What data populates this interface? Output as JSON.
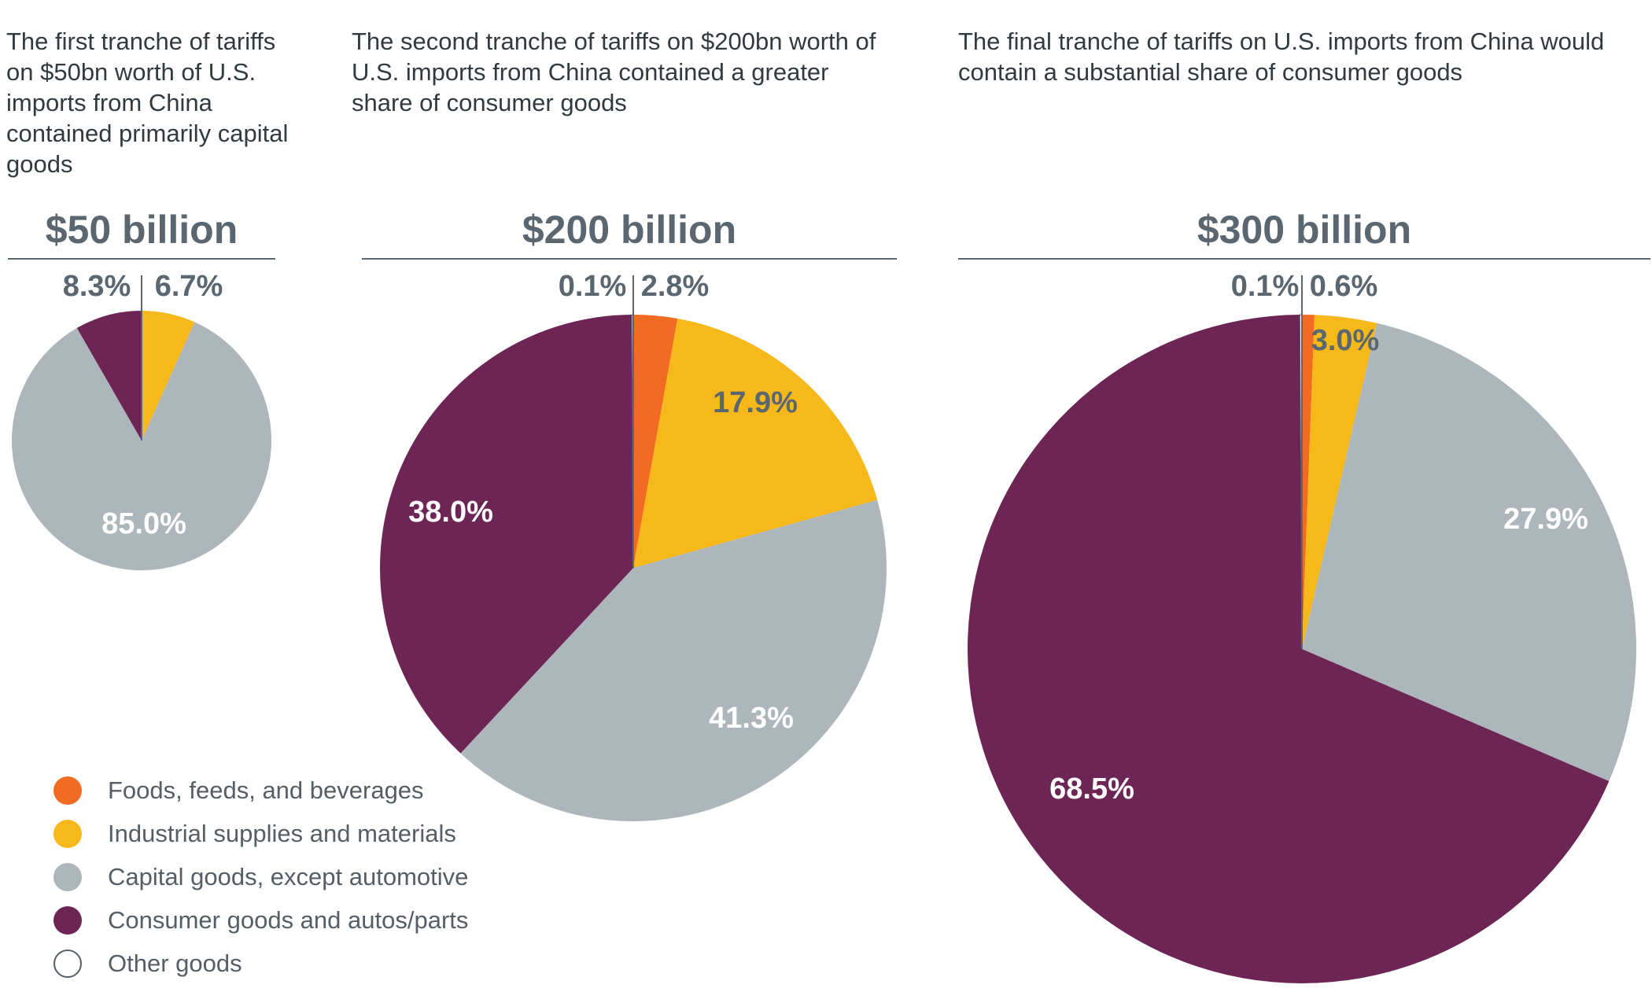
{
  "descriptions": {
    "first": "The first tranche of tariffs on $50bn worth of U.S. imports from China contained primarily capital goods",
    "second": "The second tranche of tariffs on $200bn worth of U.S. imports from China contained a greater share of consumer goods",
    "third": "The final tranche of tariffs on U.S. imports from China would contain a substantial share of consumer goods"
  },
  "legend": [
    {
      "label": "Foods, feeds, and beverages",
      "color": "#f26b22"
    },
    {
      "label": "Industrial supplies and materials",
      "color": "#f7b81a"
    },
    {
      "label": "Capital goods, except automotive",
      "color": "#adb6bb"
    },
    {
      "label": "Consumer goods and autos/parts",
      "color": "#6d2556"
    },
    {
      "label": "Other goods",
      "color": "#ffffff"
    }
  ],
  "chart_data": [
    {
      "type": "pie",
      "title": "$50 billion",
      "slices": [
        {
          "category": "Foods, feeds, and beverages",
          "value": 0,
          "label": ""
        },
        {
          "category": "Industrial supplies and materials",
          "value": 6.7,
          "label": "6.7%"
        },
        {
          "category": "Capital goods, except automotive",
          "value": 85.0,
          "label": "85.0%"
        },
        {
          "category": "Consumer goods and autos/parts",
          "value": 8.3,
          "label": "8.3%"
        },
        {
          "category": "Other goods",
          "value": 0,
          "label": ""
        }
      ]
    },
    {
      "type": "pie",
      "title": "$200 billion",
      "slices": [
        {
          "category": "Foods, feeds, and beverages",
          "value": 2.8,
          "label": "2.8%"
        },
        {
          "category": "Industrial supplies and materials",
          "value": 17.9,
          "label": "17.9%"
        },
        {
          "category": "Capital goods, except automotive",
          "value": 41.3,
          "label": "41.3%"
        },
        {
          "category": "Consumer goods and autos/parts",
          "value": 38.0,
          "label": "38.0%"
        },
        {
          "category": "Other goods",
          "value": 0.1,
          "label": "0.1%"
        }
      ]
    },
    {
      "type": "pie",
      "title": "$300 billion",
      "slices": [
        {
          "category": "Foods, feeds, and beverages",
          "value": 0.6,
          "label": "0.6%"
        },
        {
          "category": "Industrial supplies and materials",
          "value": 3.0,
          "label": "3.0%"
        },
        {
          "category": "Capital goods, except automotive",
          "value": 27.9,
          "label": "27.9%"
        },
        {
          "category": "Consumer goods and autos/parts",
          "value": 68.5,
          "label": "68.5%"
        },
        {
          "category": "Other goods",
          "value": 0.1,
          "label": "0.1%"
        }
      ]
    }
  ]
}
